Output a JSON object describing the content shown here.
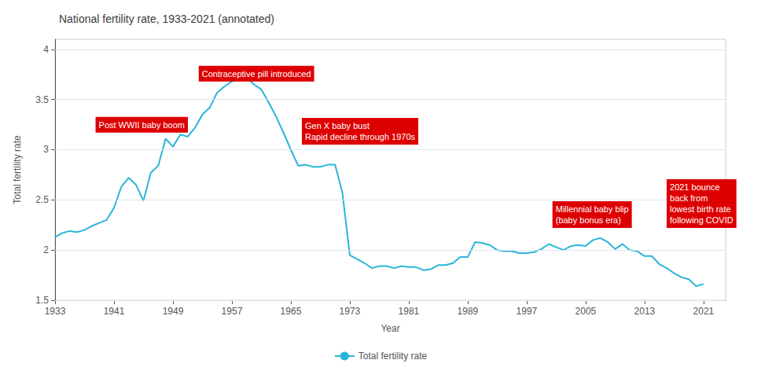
{
  "chart_data": {
    "type": "line",
    "title": "National fertility rate, 1933-2021 (annotated)",
    "xlabel": "Year",
    "ylabel": "Total fertility rate",
    "x": [
      1933,
      1934,
      1935,
      1936,
      1937,
      1938,
      1939,
      1940,
      1941,
      1942,
      1943,
      1944,
      1945,
      1946,
      1947,
      1948,
      1949,
      1950,
      1951,
      1952,
      1953,
      1954,
      1955,
      1956,
      1957,
      1958,
      1959,
      1960,
      1961,
      1962,
      1963,
      1964,
      1965,
      1966,
      1967,
      1968,
      1969,
      1970,
      1971,
      1972,
      1973,
      1974,
      1975,
      1976,
      1977,
      1978,
      1979,
      1980,
      1981,
      1982,
      1983,
      1984,
      1985,
      1986,
      1987,
      1988,
      1989,
      1990,
      1991,
      1992,
      1993,
      1994,
      1995,
      1996,
      1997,
      1998,
      1999,
      2000,
      2001,
      2002,
      2003,
      2004,
      2005,
      2006,
      2007,
      2008,
      2009,
      2010,
      2011,
      2012,
      2013,
      2014,
      2015,
      2016,
      2017,
      2018,
      2019,
      2020,
      2021
    ],
    "series": [
      {
        "name": "Total fertility rate",
        "color": "#29b5d8",
        "values": [
          2.13,
          2.17,
          2.19,
          2.18,
          2.2,
          2.24,
          2.27,
          2.3,
          2.42,
          2.63,
          2.72,
          2.65,
          2.49,
          2.77,
          2.84,
          3.11,
          3.03,
          3.15,
          3.13,
          3.22,
          3.35,
          3.42,
          3.57,
          3.63,
          3.68,
          3.72,
          3.72,
          3.65,
          3.6,
          3.47,
          3.33,
          3.17,
          3.0,
          2.84,
          2.85,
          2.83,
          2.83,
          2.85,
          2.85,
          2.57,
          1.95,
          1.91,
          1.87,
          1.82,
          1.84,
          1.84,
          1.82,
          1.84,
          1.83,
          1.83,
          1.8,
          1.81,
          1.85,
          1.85,
          1.87,
          1.93,
          1.93,
          2.08,
          2.07,
          2.05,
          2.0,
          1.99,
          1.99,
          1.97,
          1.97,
          1.98,
          2.01,
          2.06,
          2.03,
          2.0,
          2.04,
          2.05,
          2.04,
          2.1,
          2.12,
          2.08,
          2.01,
          2.06,
          2.0,
          1.99,
          1.94,
          1.94,
          1.86,
          1.82,
          1.77,
          1.73,
          1.71,
          1.64,
          1.66
        ]
      }
    ],
    "xlim": [
      1933,
      2024
    ],
    "ylim": [
      1.5,
      4.1
    ],
    "xticks": [
      1933,
      1941,
      1949,
      1957,
      1965,
      1973,
      1981,
      1989,
      1997,
      2005,
      2013,
      2021
    ],
    "yticks": [
      1.5,
      2,
      2.5,
      3,
      3.5,
      4
    ],
    "grid": true,
    "legend": "bottom",
    "annotations": [
      {
        "text": "Post WWII baby boom",
        "x": 1938.5,
        "y": 3.17
      },
      {
        "text": "Contraceptive pill introduced",
        "x": 1952.5,
        "y": 3.68
      },
      {
        "text": "Gen X baby bust\nRapid decline through 1970s",
        "x": 1966.5,
        "y": 3.05
      },
      {
        "text": "Millennial baby blip\n(baby bonus era)",
        "x": 2000.5,
        "y": 2.22
      },
      {
        "text": "2021 bounce\nback from\nlowest birth rate\nfollowing COVID",
        "x": 2016.0,
        "y": 2.22
      }
    ]
  }
}
